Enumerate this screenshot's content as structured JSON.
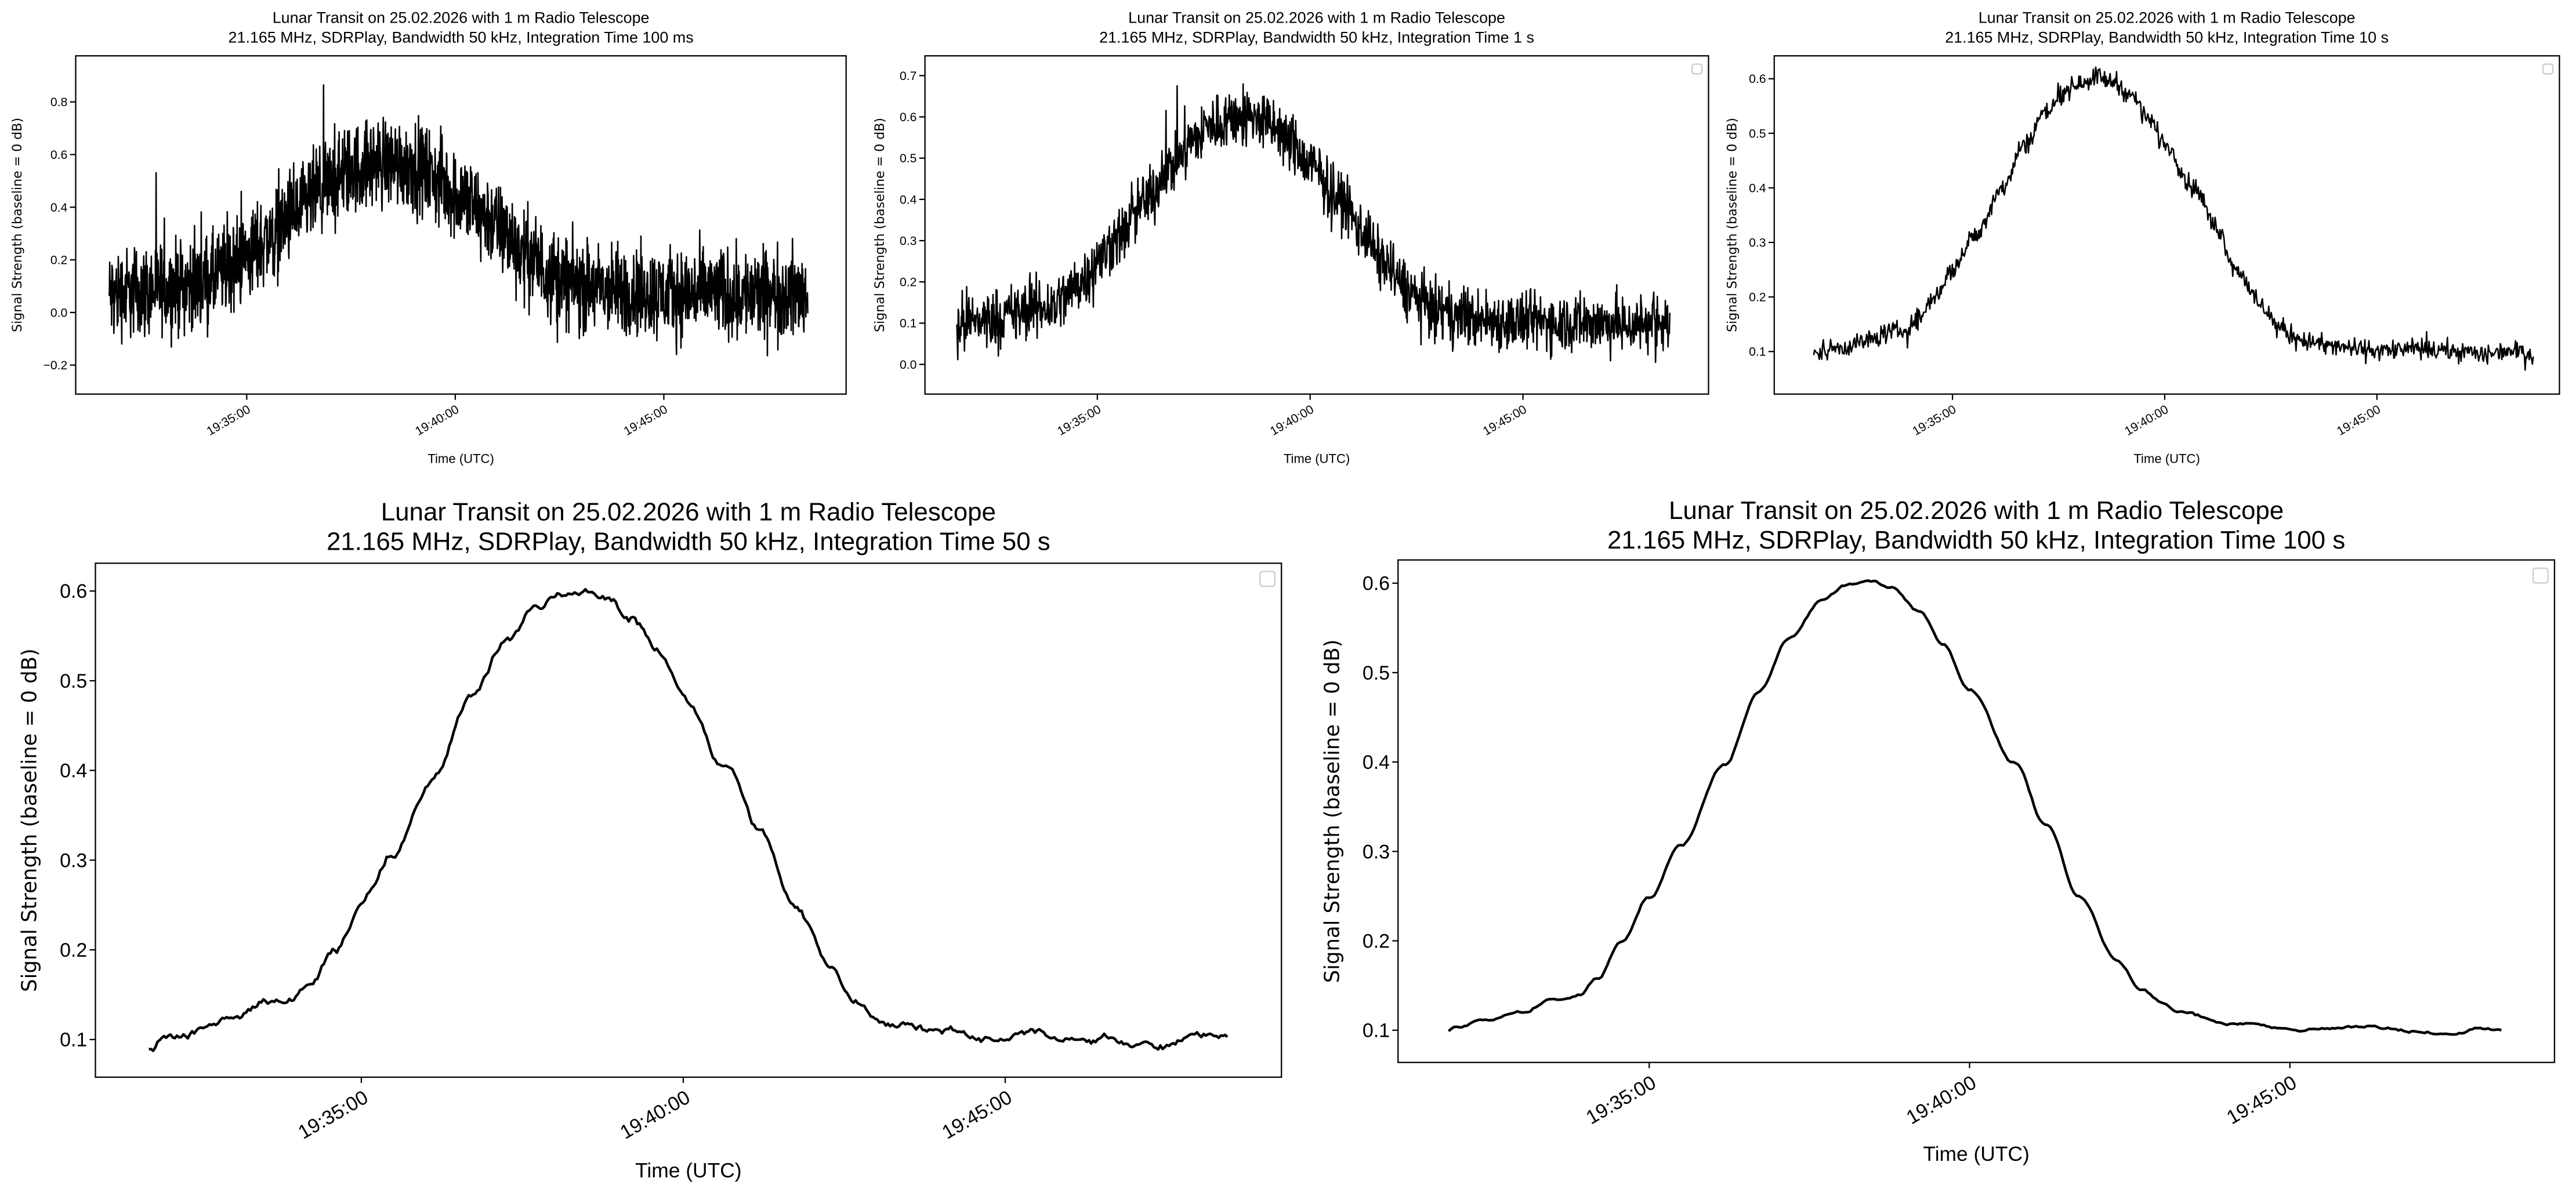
{
  "x_unit": "minutes after 19:30:00 UTC",
  "chart_data": [
    {
      "type": "line",
      "title": [
        "Lunar Transit on 25.02.2026 with 1 m Radio Telescope",
        "21.165 MHz, SDRPlay, Bandwidth 50 kHz, Integration Time 100 ms"
      ],
      "xlabel": "Time (UTC)",
      "ylabel": "Signal Strength (baseline = 0 dB)",
      "xticks": [
        {
          "value": 5,
          "label": "19:35:00"
        },
        {
          "value": 10,
          "label": "19:40:00"
        },
        {
          "value": 15,
          "label": "19:45:00"
        }
      ],
      "yticks": [
        {
          "value": -0.2,
          "label": "−0.2"
        },
        {
          "value": 0.0,
          "label": "0.0"
        },
        {
          "value": 0.2,
          "label": "0.2"
        },
        {
          "value": 0.4,
          "label": "0.4"
        },
        {
          "value": 0.6,
          "label": "0.6"
        },
        {
          "value": 0.8,
          "label": "0.8"
        }
      ],
      "xlim": [
        0.9,
        19.37
      ],
      "ylim": [
        -0.31,
        0.975
      ],
      "data_range": [
        1.7,
        18.45
      ],
      "mean_offset": -0.03,
      "noise_amplitude": 0.13,
      "samples": 2200,
      "legend": false,
      "series_color": "#000000"
    },
    {
      "type": "line",
      "title": [
        "Lunar Transit on 25.02.2026 with 1 m Radio Telescope",
        "21.165 MHz, SDRPlay, Bandwidth 50 kHz, Integration Time 1 s"
      ],
      "xlabel": "Time (UTC)",
      "ylabel": "Signal Strength (baseline = 0 dB)",
      "xticks": [
        {
          "value": 5,
          "label": "19:35:00"
        },
        {
          "value": 10,
          "label": "19:40:00"
        },
        {
          "value": 15,
          "label": "19:45:00"
        }
      ],
      "yticks": [
        {
          "value": 0.0,
          "label": "0.0"
        },
        {
          "value": 0.1,
          "label": "0.1"
        },
        {
          "value": 0.2,
          "label": "0.2"
        },
        {
          "value": 0.3,
          "label": "0.3"
        },
        {
          "value": 0.4,
          "label": "0.4"
        },
        {
          "value": 0.5,
          "label": "0.5"
        },
        {
          "value": 0.6,
          "label": "0.6"
        },
        {
          "value": 0.7,
          "label": "0.7"
        }
      ],
      "xlim": [
        0.95,
        19.36
      ],
      "ylim": [
        -0.072,
        0.748
      ],
      "data_range": [
        1.7,
        18.45
      ],
      "mean_offset": 0.0,
      "noise_amplitude": 0.055,
      "samples": 1600,
      "legend": true,
      "series_color": "#000000"
    },
    {
      "type": "line",
      "title": [
        "Lunar Transit on 25.02.2026 with 1 m Radio Telescope",
        "21.165 MHz, SDRPlay, Bandwidth 50 kHz, Integration Time 10 s"
      ],
      "xlabel": "Time (UTC)",
      "ylabel": "Signal Strength (baseline = 0 dB)",
      "xticks": [
        {
          "value": 5,
          "label": "19:35:00"
        },
        {
          "value": 10,
          "label": "19:40:00"
        },
        {
          "value": 15,
          "label": "19:45:00"
        }
      ],
      "yticks": [
        {
          "value": 0.1,
          "label": "0.1"
        },
        {
          "value": 0.2,
          "label": "0.2"
        },
        {
          "value": 0.3,
          "label": "0.3"
        },
        {
          "value": 0.4,
          "label": "0.4"
        },
        {
          "value": 0.5,
          "label": "0.5"
        },
        {
          "value": 0.6,
          "label": "0.6"
        }
      ],
      "xlim": [
        0.8,
        19.3
      ],
      "ylim": [
        0.022,
        0.642
      ],
      "data_range": [
        1.73,
        18.7
      ],
      "mean_offset": 0.0,
      "noise_amplitude": 0.014,
      "samples": 900,
      "legend": true,
      "series_color": "#000000"
    },
    {
      "type": "line",
      "title": [
        "Lunar Transit on 25.02.2026 with 1 m Radio Telescope",
        "21.165 MHz, SDRPlay, Bandwidth 50 kHz, Integration Time 50 s"
      ],
      "xlabel": "Time (UTC)",
      "ylabel": "Signal Strength (baseline = 0 dB)",
      "xticks": [
        {
          "value": 5,
          "label": "19:35:00"
        },
        {
          "value": 10,
          "label": "19:40:00"
        },
        {
          "value": 15,
          "label": "19:45:00"
        }
      ],
      "yticks": [
        {
          "value": 0.1,
          "label": "0.1"
        },
        {
          "value": 0.2,
          "label": "0.2"
        },
        {
          "value": 0.3,
          "label": "0.3"
        },
        {
          "value": 0.4,
          "label": "0.4"
        },
        {
          "value": 0.5,
          "label": "0.5"
        },
        {
          "value": 0.6,
          "label": "0.6"
        }
      ],
      "xlim": [
        0.87,
        19.29
      ],
      "ylim": [
        0.058,
        0.631
      ],
      "data_range": [
        1.7,
        18.45
      ],
      "mean_offset": 0.0,
      "noise_amplitude": 0.004,
      "samples": 500,
      "legend": true,
      "series_color": "#000000"
    },
    {
      "type": "line",
      "title": [
        "Lunar Transit on 25.02.2026 with 1 m Radio Telescope",
        "21.165 MHz, SDRPlay, Bandwidth 50 kHz, Integration Time 100 s"
      ],
      "xlabel": "Time (UTC)",
      "ylabel": "Signal Strength (baseline = 0 dB)",
      "xticks": [
        {
          "value": 5,
          "label": "19:35:00"
        },
        {
          "value": 10,
          "label": "19:40:00"
        },
        {
          "value": 15,
          "label": "19:45:00"
        }
      ],
      "yticks": [
        {
          "value": 0.1,
          "label": "0.1"
        },
        {
          "value": 0.2,
          "label": "0.2"
        },
        {
          "value": 0.3,
          "label": "0.3"
        },
        {
          "value": 0.4,
          "label": "0.4"
        },
        {
          "value": 0.5,
          "label": "0.5"
        },
        {
          "value": 0.6,
          "label": "0.6"
        }
      ],
      "xlim": [
        1.08,
        19.13
      ],
      "ylim": [
        0.064,
        0.626
      ],
      "data_range": [
        1.87,
        18.3
      ],
      "mean_offset": 0.0,
      "noise_amplitude": 0.0015,
      "samples": 400,
      "legend": true,
      "series_color": "#000000"
    }
  ],
  "mean_curve": {
    "x": [
      1.7,
      2.0,
      2.5,
      3.0,
      3.5,
      3.9,
      4.2,
      4.57,
      5.0,
      5.5,
      6.17,
      6.7,
      7.2,
      7.7,
      8.1,
      8.4,
      8.8,
      9.2,
      9.6,
      10.0,
      10.7,
      11.2,
      11.7,
      12.3,
      12.7,
      13.0,
      13.3,
      14.0,
      15.0,
      16.0,
      17.0,
      17.5,
      18.0,
      18.7
    ],
    "y": [
      0.09,
      0.105,
      0.11,
      0.12,
      0.135,
      0.14,
      0.16,
      0.2,
      0.25,
      0.31,
      0.4,
      0.48,
      0.54,
      0.58,
      0.597,
      0.603,
      0.595,
      0.57,
      0.53,
      0.48,
      0.4,
      0.33,
      0.25,
      0.18,
      0.145,
      0.13,
      0.12,
      0.108,
      0.102,
      0.104,
      0.1,
      0.095,
      0.102,
      0.098
    ]
  }
}
